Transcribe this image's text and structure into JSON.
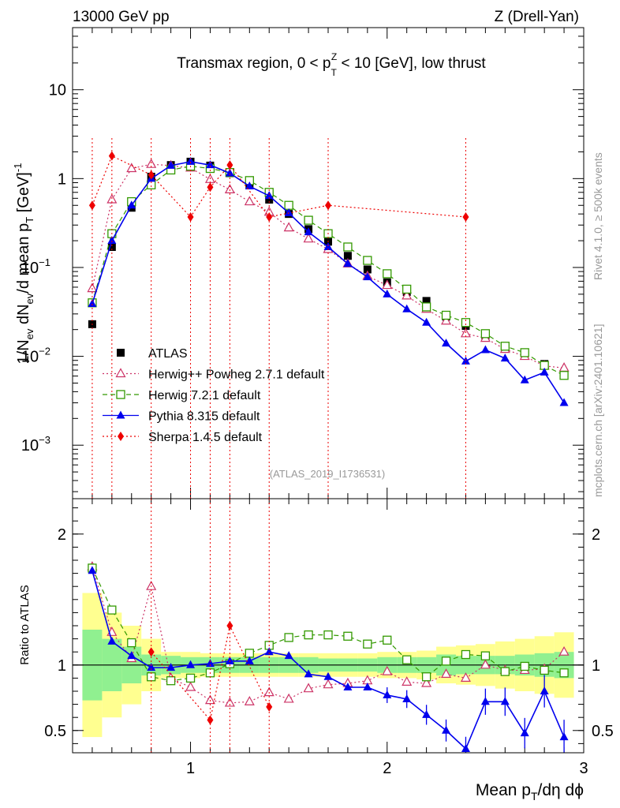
{
  "header": {
    "left": "13000 GeV pp",
    "right": "Z (Drell-Yan)"
  },
  "side_labels": {
    "rivet": "Rivet 4.1.0, ≥ 500k events",
    "mcplots": "mcplots.cern.ch [arXiv:2401.10621]"
  },
  "watermark": "(ATLAS_2019_I1736531)",
  "colors": {
    "atlas": "#000000",
    "herwigpp": "#cc3366",
    "herwig7": "#339900",
    "pythia": "#0000ee",
    "sherpa": "#ee0000",
    "band_inner": "#90f090",
    "band_outer": "#ffff90"
  },
  "chart_data": [
    {
      "type": "scatter",
      "panel": "main",
      "title": "Transmax region, 0 < p_T^Z < 10 [GeV], low thrust",
      "title_parts": {
        "pre": "Transmax region, 0 < p",
        "sub": "T",
        "sup": "Z",
        "post": " < 10 [GeV], low thrust"
      },
      "ylabel": "1/N_ev dN_ev/d mean p_T [GeV]^-1",
      "ylabel_parts": {
        "a": "1/N",
        "a_sub": "ev",
        "b": " dN",
        "b_sub": "ev",
        "c": "/d mean p",
        "c_sub": "T",
        "d": " [GeV]",
        "d_sup": "-1"
      },
      "yscale": "log",
      "xlim": [
        0.4,
        3.0
      ],
      "ylim": [
        0.00025,
        50
      ],
      "y_ticks": [
        {
          "value": 10,
          "base": "10",
          "exp": ""
        },
        {
          "value": 1,
          "base": "1",
          "exp": ""
        },
        {
          "value": 0.1,
          "base": "10",
          "exp": "−1"
        },
        {
          "value": 0.01,
          "base": "10",
          "exp": "−2"
        },
        {
          "value": 0.001,
          "base": "10",
          "exp": "−3"
        }
      ],
      "legend_position": "lower-left",
      "series": [
        {
          "name": "ATLAS",
          "key": "atlas",
          "style": "data",
          "x": [
            0.5,
            0.6,
            0.7,
            0.8,
            0.9,
            1.0,
            1.1,
            1.2,
            1.3,
            1.4,
            1.5,
            1.6,
            1.7,
            1.8,
            1.9,
            2.0,
            2.1,
            2.2,
            2.3,
            2.4,
            2.5,
            2.6,
            2.7,
            2.8,
            2.9
          ],
          "y": [
            0.023,
            0.17,
            0.47,
            1.05,
            1.42,
            1.55,
            1.4,
            1.15,
            0.85,
            0.58,
            0.4,
            0.27,
            0.195,
            0.135,
            0.095,
            0.068,
            0.053,
            0.042,
            0.028,
            0.022,
            0.017,
            0.013,
            0.011,
            0.0082,
            0.0065
          ]
        },
        {
          "name": "Herwig++ Powheg 2.7.1 default",
          "key": "herwigpp",
          "style": "dotted",
          "marker": "triangle-open",
          "x": [
            0.5,
            0.6,
            0.7,
            0.8,
            0.9,
            1.0,
            1.1,
            1.2,
            1.3,
            1.4,
            1.5,
            1.6,
            1.7,
            1.8,
            1.9,
            2.0,
            2.1,
            2.2,
            2.3,
            2.4,
            2.5,
            2.6,
            2.7,
            2.8,
            2.9
          ],
          "y": [
            0.058,
            0.58,
            1.3,
            1.45,
            1.4,
            1.32,
            0.98,
            0.75,
            0.55,
            0.42,
            0.28,
            0.21,
            0.16,
            0.11,
            0.08,
            0.063,
            0.048,
            0.034,
            0.025,
            0.018,
            0.016,
            0.012,
            0.01,
            0.0078,
            0.0074
          ]
        },
        {
          "name": "Herwig 7.2.1 default",
          "key": "herwig7",
          "style": "dashed",
          "marker": "square-open",
          "x": [
            0.5,
            0.6,
            0.7,
            0.8,
            0.9,
            1.0,
            1.1,
            1.2,
            1.3,
            1.4,
            1.5,
            1.6,
            1.7,
            1.8,
            1.9,
            2.0,
            2.1,
            2.2,
            2.3,
            2.4,
            2.5,
            2.6,
            2.7,
            2.8,
            2.9
          ],
          "y": [
            0.04,
            0.24,
            0.55,
            0.85,
            1.25,
            1.38,
            1.3,
            1.17,
            0.95,
            0.7,
            0.5,
            0.34,
            0.24,
            0.17,
            0.12,
            0.085,
            0.057,
            0.036,
            0.029,
            0.024,
            0.018,
            0.013,
            0.011,
            0.0079,
            0.0061
          ]
        },
        {
          "name": "Pythia 8.315 default",
          "key": "pythia",
          "style": "solid",
          "marker": "triangle-filled",
          "x": [
            0.5,
            0.6,
            0.7,
            0.8,
            0.9,
            1.0,
            1.1,
            1.2,
            1.3,
            1.4,
            1.5,
            1.6,
            1.7,
            1.8,
            1.9,
            2.0,
            2.1,
            2.2,
            2.3,
            2.4,
            2.5,
            2.6,
            2.7,
            2.8,
            2.9
          ],
          "y": [
            0.039,
            0.2,
            0.5,
            1.0,
            1.4,
            1.55,
            1.42,
            1.15,
            0.82,
            0.64,
            0.41,
            0.25,
            0.17,
            0.11,
            0.078,
            0.05,
            0.034,
            0.024,
            0.014,
            0.0088,
            0.0118,
            0.0095,
            0.0054,
            0.0066,
            0.003
          ]
        },
        {
          "name": "Sherpa 1.4.5 default",
          "key": "sherpa",
          "style": "dotted",
          "marker": "diamond-filled",
          "x": [
            0.5,
            0.6,
            0.8,
            1.0,
            1.1,
            1.2,
            1.4,
            1.7,
            2.4
          ],
          "y": [
            0.5,
            1.8,
            1.1,
            0.37,
            0.8,
            1.42,
            0.37,
            0.5,
            0.37
          ]
        }
      ]
    },
    {
      "type": "scatter",
      "panel": "ratio",
      "ylabel": "Ratio to ATLAS",
      "xlabel": "Mean p_T/dη dϕ",
      "xlabel_parts": {
        "pre": "Mean p",
        "sub": "T",
        "post": "/dη dϕ"
      },
      "xlim": [
        0.4,
        3.0
      ],
      "ylim": [
        0.33,
        2.27
      ],
      "x_ticks": [
        "1",
        "2",
        "3"
      ],
      "y_ticks": [
        "0.5",
        "1",
        "2"
      ],
      "band_edges": [
        0.45,
        0.55,
        0.65,
        0.75,
        0.85,
        0.95,
        1.05,
        1.15,
        1.25,
        1.35,
        1.45,
        1.55,
        1.65,
        1.75,
        1.85,
        1.95,
        2.05,
        2.15,
        2.25,
        2.35,
        2.45,
        2.55,
        2.65,
        2.75,
        2.85,
        2.95
      ],
      "band_inner": [
        0.27,
        0.2,
        0.14,
        0.08,
        0.07,
        0.06,
        0.06,
        0.06,
        0.06,
        0.06,
        0.06,
        0.06,
        0.05,
        0.05,
        0.05,
        0.06,
        0.06,
        0.06,
        0.08,
        0.07,
        0.07,
        0.07,
        0.08,
        0.09,
        0.1
      ],
      "band_outer": [
        0.55,
        0.4,
        0.3,
        0.2,
        0.1,
        0.1,
        0.09,
        0.09,
        0.09,
        0.09,
        0.09,
        0.09,
        0.09,
        0.09,
        0.09,
        0.1,
        0.1,
        0.11,
        0.14,
        0.15,
        0.16,
        0.18,
        0.2,
        0.22,
        0.25
      ],
      "series": [
        {
          "name": "Herwig++ Powheg 2.7.1 default",
          "key": "herwigpp",
          "style": "dotted",
          "marker": "triangle-open",
          "x": [
            0.5,
            0.6,
            0.7,
            0.8,
            0.9,
            1.0,
            1.1,
            1.2,
            1.3,
            1.4,
            1.5,
            1.6,
            1.7,
            1.8,
            1.9,
            2.0,
            2.1,
            2.2,
            2.3,
            2.4,
            2.5,
            2.6,
            2.7,
            2.8,
            2.9
          ],
          "y": [
            1.75,
            1.25,
            1.05,
            1.6,
            0.9,
            0.83,
            0.73,
            0.71,
            0.72,
            0.79,
            0.74,
            0.82,
            0.85,
            0.86,
            0.88,
            0.95,
            0.87,
            0.86,
            0.93,
            0.9,
            1.0,
            0.96,
            0.96,
            0.97,
            1.1
          ]
        },
        {
          "name": "Herwig 7.2.1 default",
          "key": "herwig7",
          "style": "dashed",
          "marker": "square-open",
          "x": [
            0.5,
            0.6,
            0.7,
            0.8,
            0.9,
            1.0,
            1.1,
            1.2,
            1.3,
            1.4,
            1.5,
            1.6,
            1.7,
            1.8,
            1.9,
            2.0,
            2.1,
            2.2,
            2.3,
            2.4,
            2.5,
            2.6,
            2.7,
            2.8,
            2.9
          ],
          "y": [
            1.74,
            1.42,
            1.17,
            0.91,
            0.88,
            0.9,
            0.94,
            1.01,
            1.09,
            1.15,
            1.21,
            1.23,
            1.23,
            1.22,
            1.16,
            1.19,
            1.04,
            0.91,
            1.03,
            1.08,
            1.07,
            0.95,
            0.99,
            0.96,
            0.94
          ]
        },
        {
          "name": "Pythia 8.315 default",
          "key": "pythia",
          "style": "solid",
          "marker": "triangle-filled",
          "x": [
            0.5,
            0.6,
            0.7,
            0.8,
            0.9,
            1.0,
            1.1,
            1.2,
            1.3,
            1.4,
            1.5,
            1.6,
            1.7,
            1.8,
            1.9,
            2.0,
            2.1,
            2.2,
            2.3,
            2.4,
            2.5,
            2.6,
            2.7,
            2.8,
            2.9
          ],
          "y": [
            1.72,
            1.18,
            1.07,
            0.98,
            0.98,
            1.0,
            1.01,
            1.03,
            1.03,
            1.1,
            1.07,
            0.93,
            0.91,
            0.83,
            0.83,
            0.77,
            0.74,
            0.62,
            0.5,
            0.36,
            0.72,
            0.72,
            0.48,
            0.8,
            0.45
          ]
        },
        {
          "name": "Sherpa 1.4.5 default",
          "key": "sherpa",
          "style": "dotted",
          "marker": "diamond-filled",
          "x": [
            0.8,
            1.1,
            1.2,
            1.4
          ],
          "y": [
            1.1,
            0.58,
            1.3,
            0.68
          ]
        }
      ]
    }
  ]
}
